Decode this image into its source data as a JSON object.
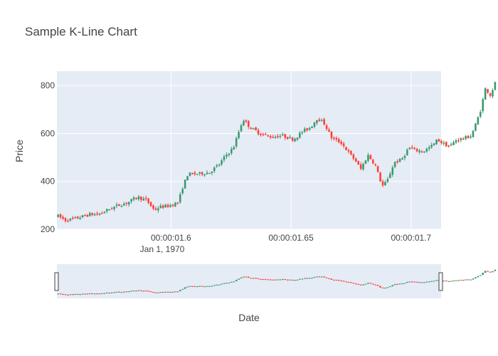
{
  "chart_data": {
    "type": "candlestick",
    "title": "Sample K-Line Chart",
    "xlabel": "Date",
    "ylabel": "Price",
    "x_tick_labels": [
      "00:00:01.6",
      "00:00:01.65",
      "00:00:01.7"
    ],
    "x_tick_sublabel": "Jan 1, 1970",
    "y_ticks": [
      200,
      400,
      600,
      800
    ],
    "ylim": [
      200,
      860
    ],
    "x_domain_seconds": [
      1.5525,
      1.7125
    ],
    "x_tick_seconds": [
      1.6,
      1.65,
      1.7
    ],
    "increasing_color": "#3d9970",
    "decreasing_color": "#ff4136",
    "background_color": "#e5ecf6",
    "range_slider": true,
    "grid": true,
    "close_series_sampled": [
      [
        1.553,
        255
      ],
      [
        1.556,
        238
      ],
      [
        1.559,
        242
      ],
      [
        1.562,
        250
      ],
      [
        1.566,
        262
      ],
      [
        1.57,
        263
      ],
      [
        1.574,
        283
      ],
      [
        1.578,
        300
      ],
      [
        1.582,
        312
      ],
      [
        1.586,
        335
      ],
      [
        1.59,
        320
      ],
      [
        1.593,
        280
      ],
      [
        1.595,
        292
      ],
      [
        1.599,
        298
      ],
      [
        1.603,
        312
      ],
      [
        1.605,
        380
      ],
      [
        1.607,
        430
      ],
      [
        1.612,
        432
      ],
      [
        1.616,
        438
      ],
      [
        1.62,
        470
      ],
      [
        1.623,
        510
      ],
      [
        1.626,
        540
      ],
      [
        1.628,
        600
      ],
      [
        1.63,
        660
      ],
      [
        1.633,
        625
      ],
      [
        1.637,
        600
      ],
      [
        1.642,
        585
      ],
      [
        1.646,
        592
      ],
      [
        1.651,
        575
      ],
      [
        1.655,
        610
      ],
      [
        1.658,
        625
      ],
      [
        1.661,
        665
      ],
      [
        1.664,
        640
      ],
      [
        1.667,
        580
      ],
      [
        1.671,
        560
      ],
      [
        1.674,
        520
      ],
      [
        1.677,
        485
      ],
      [
        1.679,
        450
      ],
      [
        1.682,
        510
      ],
      [
        1.685,
        470
      ],
      [
        1.688,
        380
      ],
      [
        1.69,
        400
      ],
      [
        1.693,
        480
      ],
      [
        1.696,
        490
      ],
      [
        1.699,
        540
      ],
      [
        1.702,
        530
      ],
      [
        1.705,
        525
      ],
      [
        1.709,
        550
      ],
      [
        1.711,
        575
      ],
      [
        1.713,
        560
      ],
      [
        1.716,
        545
      ],
      [
        1.719,
        575
      ],
      [
        1.722,
        580
      ],
      [
        1.725,
        590
      ],
      [
        1.727,
        640
      ],
      [
        1.729,
        700
      ],
      [
        1.731,
        790
      ],
      [
        1.733,
        760
      ],
      [
        1.735,
        810
      ],
      [
        1.736,
        780
      ]
    ]
  }
}
